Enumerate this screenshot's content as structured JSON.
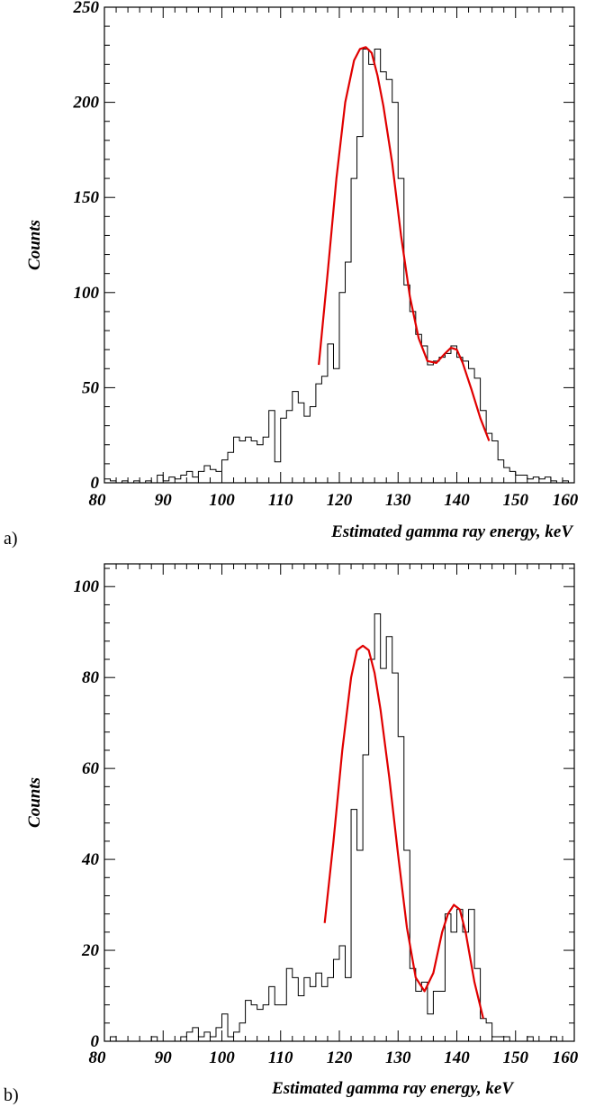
{
  "chart_data": [
    {
      "type": "histogram",
      "panel_label": "a)",
      "xlabel": "Estimated gamma ray energy, keV",
      "ylabel": "Counts",
      "xlim": [
        80,
        160
      ],
      "ylim": [
        0,
        250
      ],
      "xticks": [
        80,
        90,
        100,
        110,
        120,
        130,
        140,
        150,
        160
      ],
      "yticks": [
        0,
        50,
        100,
        150,
        200,
        250
      ],
      "grid": false,
      "bin_start": 80,
      "bin_width": 1,
      "counts": [
        2,
        1,
        0,
        1,
        0,
        1,
        0,
        1,
        0,
        4,
        1,
        3,
        2,
        4,
        6,
        3,
        6,
        9,
        7,
        6,
        12,
        16,
        24,
        22,
        24,
        22,
        20,
        24,
        38,
        11,
        34,
        38,
        48,
        42,
        35,
        40,
        52,
        56,
        73,
        60,
        100,
        116,
        160,
        182,
        228,
        220,
        228,
        216,
        212,
        200,
        160,
        104,
        90,
        78,
        72,
        62,
        64,
        66,
        68,
        72,
        66,
        64,
        60,
        55,
        38,
        26,
        22,
        12,
        8,
        6,
        4,
        4,
        2,
        3,
        2,
        3,
        1,
        0,
        1,
        0
      ],
      "fit_x": [
        116.5,
        118,
        119.5,
        121,
        122.5,
        123.5,
        124.5,
        125.5,
        126.5,
        127.5,
        129,
        130.5,
        132,
        133.5,
        135,
        136.5,
        138,
        139,
        140,
        141,
        142.5,
        144,
        145.5
      ],
      "fit_y": [
        62,
        110,
        160,
        200,
        222,
        228,
        229,
        226,
        214,
        198,
        168,
        130,
        98,
        76,
        64,
        63,
        68,
        71,
        70,
        63,
        49,
        34,
        22
      ]
    },
    {
      "type": "histogram",
      "panel_label": "b)",
      "xlabel": "Estimated gamma ray energy, keV",
      "ylabel": "Counts",
      "xlim": [
        80,
        160
      ],
      "ylim": [
        0,
        105
      ],
      "xticks": [
        80,
        90,
        100,
        110,
        120,
        130,
        140,
        150,
        160
      ],
      "yticks": [
        0,
        20,
        40,
        60,
        80,
        100
      ],
      "grid": false,
      "bin_start": 80,
      "bin_width": 1,
      "counts": [
        0,
        1,
        0,
        0,
        0,
        0,
        0,
        0,
        1,
        0,
        0,
        0,
        0,
        1,
        2,
        3,
        1,
        2,
        1,
        3,
        6,
        1,
        2,
        4,
        9,
        8,
        7,
        8,
        12,
        8,
        8,
        16,
        14,
        10,
        14,
        12,
        15,
        12,
        14,
        18,
        21,
        14,
        51,
        42,
        63,
        84,
        94,
        82,
        89,
        81,
        67,
        42,
        16,
        11,
        13,
        6,
        11,
        11,
        28,
        24,
        29,
        24,
        29,
        16,
        5,
        4,
        1,
        1,
        1,
        0,
        0,
        0,
        1,
        0,
        0,
        0,
        1,
        0,
        0,
        0
      ],
      "fit_x": [
        117.5,
        119,
        120.5,
        122,
        123,
        124,
        125,
        126,
        127,
        128.5,
        130,
        131.5,
        133,
        134.5,
        136,
        137.5,
        138.5,
        139.5,
        140.5,
        141.5,
        143,
        144.5
      ],
      "fit_y": [
        26,
        44,
        64,
        80,
        86,
        87,
        86,
        81,
        73,
        58,
        41,
        25,
        14,
        11,
        15,
        24,
        28,
        30,
        29,
        24,
        13,
        5
      ]
    }
  ]
}
